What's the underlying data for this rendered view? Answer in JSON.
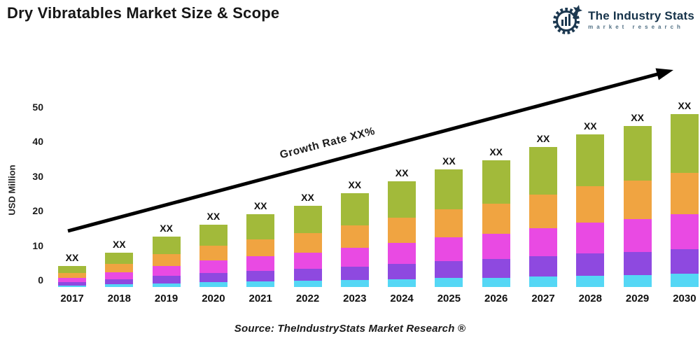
{
  "header": {
    "title": "Dry Vibratables Market Size & Scope"
  },
  "logo": {
    "name": "The Industry Stats",
    "subtitle": "market research",
    "brand_color": "#1c3850"
  },
  "chart_data": {
    "type": "bar",
    "stacked": true,
    "title": "Dry Vibratables Market Size & Scope",
    "xlabel": "",
    "ylabel": "USD Million",
    "ylim": [
      0,
      52
    ],
    "yticks": [
      0,
      10,
      20,
      30,
      40,
      50
    ],
    "grid": "off",
    "legend": "none",
    "bar_value_label": "XX",
    "growth_label": "Growth Rate XX%",
    "categories": [
      "2017",
      "2018",
      "2019",
      "2020",
      "2021",
      "2022",
      "2023",
      "2024",
      "2025",
      "2026",
      "2027",
      "2028",
      "2029",
      "2030"
    ],
    "totals": [
      6,
      10,
      14.5,
      18,
      21,
      23.5,
      27,
      30.5,
      34,
      36.5,
      40.5,
      44,
      46.5,
      50
    ],
    "series": [
      {
        "name": "segment-1-bottom",
        "color": "#55d7f5",
        "values": [
          0.5,
          0.8,
          1.1,
          1.4,
          1.6,
          1.8,
          2.0,
          2.3,
          2.6,
          2.7,
          3.0,
          3.3,
          3.5,
          3.8
        ]
      },
      {
        "name": "segment-2",
        "color": "#8e49e0",
        "values": [
          0.9,
          1.5,
          2.1,
          2.6,
          3.0,
          3.4,
          3.9,
          4.4,
          4.9,
          5.3,
          5.9,
          6.4,
          6.7,
          7.2
        ]
      },
      {
        "name": "segment-3",
        "color": "#e94ae3",
        "values": [
          1.2,
          2.0,
          2.9,
          3.6,
          4.2,
          4.7,
          5.4,
          6.1,
          6.8,
          7.3,
          8.1,
          8.8,
          9.3,
          10.0
        ]
      },
      {
        "name": "segment-4",
        "color": "#f0a441",
        "values": [
          1.4,
          2.4,
          3.5,
          4.3,
          5.0,
          5.6,
          6.5,
          7.3,
          8.2,
          8.8,
          9.7,
          10.6,
          11.2,
          12.0
        ]
      },
      {
        "name": "segment-5-top",
        "color": "#a2ba3a",
        "values": [
          2.0,
          3.3,
          4.9,
          6.1,
          7.2,
          8.0,
          9.2,
          10.4,
          11.5,
          12.4,
          13.8,
          14.9,
          15.8,
          17.0
        ]
      }
    ],
    "annotations": {
      "arrow_color": "#000000"
    }
  },
  "footer": {
    "source": "Source: TheIndustryStats Market Research ®"
  }
}
